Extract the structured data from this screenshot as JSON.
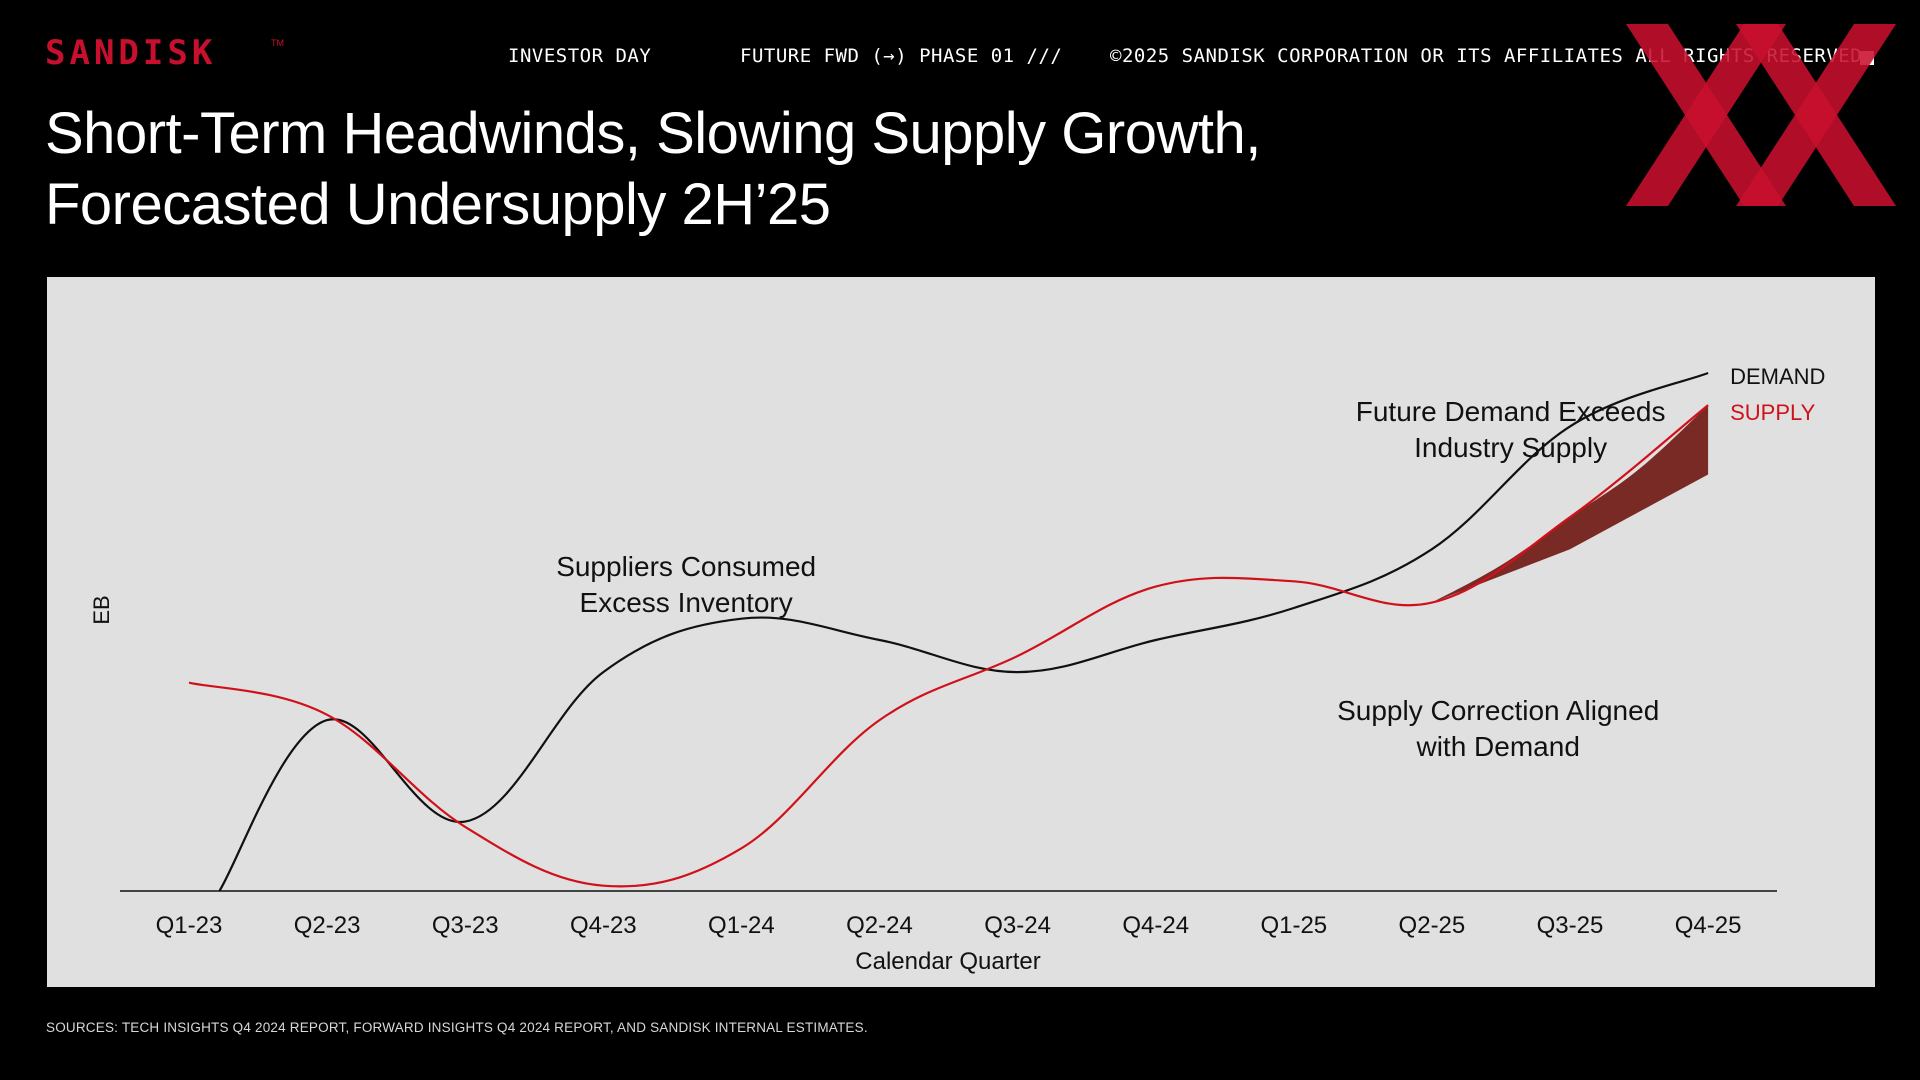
{
  "header": {
    "brand": "SANDISK",
    "trademark": "TM",
    "items": [
      "INVESTOR DAY",
      "FUTURE FWD (→) PHASE 01 ///",
      "©2025 SANDISK CORPORATION OR ITS AFFILIATES ALL RIGHTS RESERVED"
    ]
  },
  "title_lines": [
    "Short-Term Headwinds, Slowing Supply Growth,",
    "Forecasted Undersupply 2H’25"
  ],
  "colors": {
    "background": "#000000",
    "panel": "#e0e0e0",
    "brand_red": "#c8102e",
    "demand_line": "#111111",
    "supply_line": "#d0111a",
    "gap_fill": "#7a2a25"
  },
  "chart_data": {
    "type": "line",
    "xlabel": "Calendar Quarter",
    "ylabel": "EB",
    "categories": [
      "Q1-23",
      "Q2-23",
      "Q3-23",
      "Q4-23",
      "Q1-24",
      "Q2-24",
      "Q3-24",
      "Q4-24",
      "Q1-25",
      "Q2-25",
      "Q3-25",
      "Q4-25"
    ],
    "ylim": [
      0,
      100
    ],
    "grid": false,
    "series": [
      {
        "name": "DEMAND",
        "color": "#111111",
        "points": [
          [
            0.22,
            0
          ],
          [
            1,
            32
          ],
          [
            2,
            13
          ],
          [
            3,
            41
          ],
          [
            4,
            51
          ],
          [
            5,
            47
          ],
          [
            6,
            41
          ],
          [
            7,
            47
          ],
          [
            8,
            53
          ],
          [
            9,
            64
          ],
          [
            10,
            87
          ],
          [
            11,
            97
          ]
        ]
      },
      {
        "name": "SUPPLY",
        "color": "#d0111a",
        "points": [
          [
            0,
            39
          ],
          [
            1,
            33
          ],
          [
            2,
            12
          ],
          [
            3,
            1
          ],
          [
            4,
            8
          ],
          [
            5,
            32
          ],
          [
            6,
            44
          ],
          [
            7,
            57
          ],
          [
            8,
            58
          ],
          [
            9,
            54
          ],
          [
            10,
            70
          ],
          [
            11,
            91
          ]
        ]
      }
    ],
    "undersupply_band": {
      "upper": [
        [
          9,
          54
        ],
        [
          9.5,
          61
        ],
        [
          10,
          70
        ],
        [
          10.5,
          79
        ],
        [
          11,
          91
        ]
      ],
      "lower": [
        [
          9,
          54
        ],
        [
          10,
          64
        ],
        [
          11,
          78
        ]
      ]
    },
    "annotations": [
      {
        "lines": [
          "Suppliers Consumed",
          "Excess Inventory"
        ],
        "at": [
          3.6,
          59
        ]
      },
      {
        "lines": [
          "Future Demand Exceeds",
          "Industry Supply"
        ],
        "at": [
          9.57,
          88
        ]
      },
      {
        "lines": [
          "Supply Correction Aligned",
          "with Demand"
        ],
        "at": [
          9.48,
          32
        ]
      }
    ]
  },
  "footer": {
    "sources": "SOURCES: TECH INSIGHTS Q4 2024 REPORT, FORWARD INSIGHTS Q4 2024 REPORT, AND SANDISK INTERNAL ESTIMATES."
  }
}
